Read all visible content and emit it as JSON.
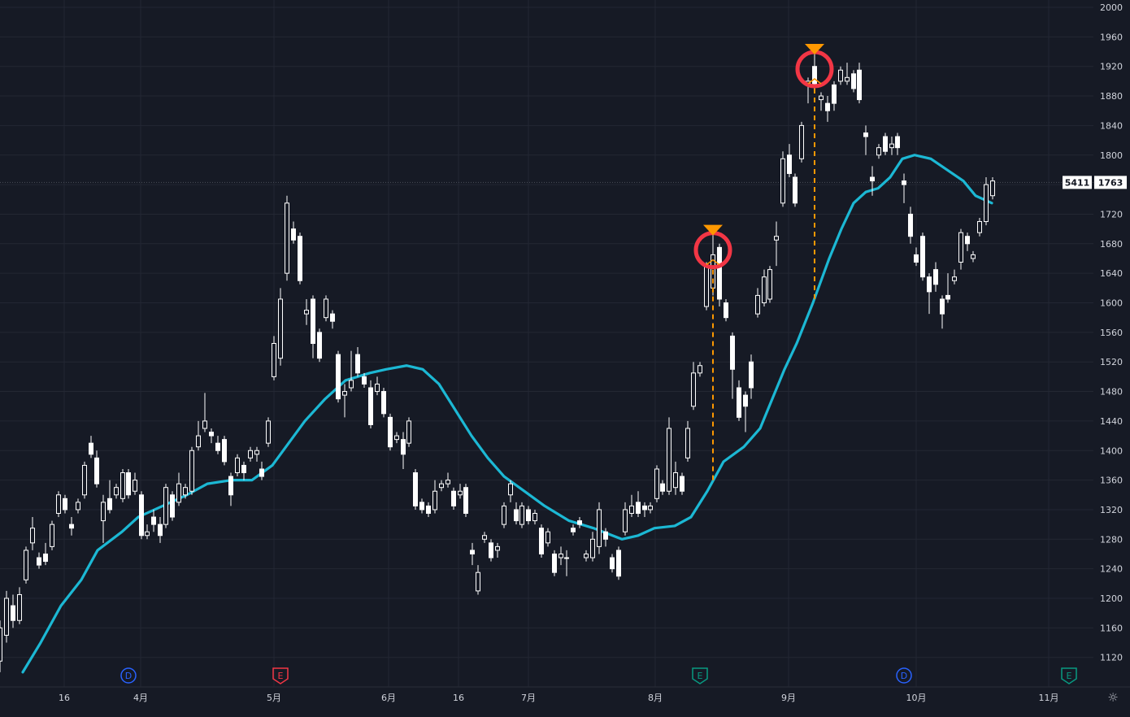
{
  "chart_data": {
    "type": "candlestick",
    "y_axis": {
      "ticks": [
        2000,
        1960,
        1920,
        1880,
        1840,
        1800,
        1760,
        1720,
        1680,
        1640,
        1600,
        1560,
        1520,
        1480,
        1440,
        1400,
        1360,
        1320,
        1280,
        1240,
        1200,
        1160,
        1120
      ],
      "range": [
        1100,
        2000
      ],
      "position": "right"
    },
    "x_axis": {
      "labels": [
        "16",
        "4月",
        "5月",
        "6月",
        "16",
        "7月",
        "8月",
        "9月",
        "10月",
        "11月"
      ]
    },
    "last_price": {
      "volume": "5411",
      "price": "1763"
    },
    "moving_average": {
      "color": "#1cb8d4",
      "points": [
        [
          28,
          1100
        ],
        [
          50,
          1140
        ],
        [
          75,
          1190
        ],
        [
          100,
          1225
        ],
        [
          120,
          1265
        ],
        [
          150,
          1290
        ],
        [
          170,
          1310
        ],
        [
          200,
          1325
        ],
        [
          230,
          1340
        ],
        [
          255,
          1355
        ],
        [
          285,
          1360
        ],
        [
          310,
          1360
        ],
        [
          335,
          1380
        ],
        [
          355,
          1410
        ],
        [
          375,
          1440
        ],
        [
          400,
          1470
        ],
        [
          425,
          1495
        ],
        [
          455,
          1505
        ],
        [
          475,
          1510
        ],
        [
          500,
          1515
        ],
        [
          520,
          1510
        ],
        [
          540,
          1490
        ],
        [
          560,
          1455
        ],
        [
          580,
          1420
        ],
        [
          600,
          1390
        ],
        [
          620,
          1365
        ],
        [
          645,
          1345
        ],
        [
          670,
          1325
        ],
        [
          700,
          1305
        ],
        [
          730,
          1295
        ],
        [
          765,
          1280
        ],
        [
          785,
          1285
        ],
        [
          805,
          1295
        ],
        [
          830,
          1298
        ],
        [
          850,
          1310
        ],
        [
          870,
          1345
        ],
        [
          890,
          1385
        ],
        [
          915,
          1405
        ],
        [
          935,
          1430
        ],
        [
          950,
          1470
        ],
        [
          965,
          1510
        ],
        [
          980,
          1545
        ],
        [
          1000,
          1600
        ],
        [
          1020,
          1660
        ],
        [
          1035,
          1700
        ],
        [
          1050,
          1735
        ],
        [
          1065,
          1750
        ],
        [
          1080,
          1755
        ],
        [
          1095,
          1770
        ],
        [
          1110,
          1795
        ],
        [
          1125,
          1800
        ],
        [
          1145,
          1795
        ],
        [
          1165,
          1780
        ],
        [
          1185,
          1765
        ],
        [
          1200,
          1745
        ],
        [
          1220,
          1735
        ]
      ]
    },
    "candles": [
      [
        0,
        1115,
        1160,
        1100,
        1170
      ],
      [
        8,
        1150,
        1200,
        1140,
        1210
      ],
      [
        16,
        1190,
        1170,
        1160,
        1205
      ],
      [
        24,
        1170,
        1205,
        1165,
        1215
      ],
      [
        32,
        1225,
        1265,
        1220,
        1270
      ],
      [
        40,
        1275,
        1295,
        1265,
        1310
      ],
      [
        48,
        1255,
        1245,
        1240,
        1262
      ],
      [
        56,
        1260,
        1250,
        1245,
        1275
      ],
      [
        64,
        1270,
        1300,
        1265,
        1305
      ],
      [
        72,
        1315,
        1340,
        1310,
        1345
      ],
      [
        80,
        1335,
        1320,
        1315,
        1340
      ],
      [
        88,
        1300,
        1295,
        1285,
        1310
      ],
      [
        96,
        1320,
        1330,
        1315,
        1335
      ],
      [
        104,
        1340,
        1380,
        1335,
        1385
      ],
      [
        112,
        1410,
        1395,
        1390,
        1420
      ],
      [
        119,
        1390,
        1355,
        1350,
        1400
      ],
      [
        127,
        1305,
        1330,
        1275,
        1340
      ],
      [
        135,
        1335,
        1320,
        1315,
        1360
      ],
      [
        143,
        1340,
        1350,
        1335,
        1355
      ],
      [
        151,
        1335,
        1370,
        1330,
        1375
      ],
      [
        158,
        1370,
        1340,
        1335,
        1375
      ],
      [
        166,
        1345,
        1360,
        1340,
        1370
      ],
      [
        174,
        1340,
        1285,
        1280,
        1345
      ],
      [
        181,
        1285,
        1290,
        1280,
        1300
      ],
      [
        189,
        1310,
        1300,
        1290,
        1320
      ],
      [
        197,
        1300,
        1285,
        1275,
        1310
      ],
      [
        204,
        1300,
        1350,
        1295,
        1355
      ],
      [
        212,
        1340,
        1310,
        1305,
        1345
      ],
      [
        220,
        1330,
        1355,
        1325,
        1370
      ],
      [
        228,
        1340,
        1350,
        1335,
        1355
      ],
      [
        236,
        1345,
        1400,
        1340,
        1405
      ],
      [
        244,
        1405,
        1420,
        1400,
        1440
      ],
      [
        252,
        1430,
        1440,
        1425,
        1478
      ],
      [
        260,
        1425,
        1420,
        1410,
        1430
      ],
      [
        268,
        1410,
        1400,
        1395,
        1420
      ],
      [
        276,
        1415,
        1385,
        1380,
        1420
      ],
      [
        284,
        1365,
        1340,
        1325,
        1370
      ],
      [
        292,
        1370,
        1390,
        1365,
        1395
      ],
      [
        300,
        1380,
        1370,
        1360,
        1385
      ],
      [
        308,
        1390,
        1400,
        1385,
        1405
      ],
      [
        316,
        1395,
        1400,
        1385,
        1405
      ],
      [
        322,
        1375,
        1365,
        1360,
        1385
      ],
      [
        330,
        1410,
        1440,
        1405,
        1445
      ],
      [
        337,
        1500,
        1545,
        1495,
        1555
      ],
      [
        345,
        1525,
        1605,
        1515,
        1620
      ],
      [
        353,
        1640,
        1735,
        1630,
        1745
      ],
      [
        361,
        1700,
        1685,
        1680,
        1710
      ],
      [
        369,
        1690,
        1630,
        1625,
        1695
      ],
      [
        377,
        1585,
        1590,
        1570,
        1605
      ],
      [
        385,
        1605,
        1545,
        1525,
        1610
      ],
      [
        393,
        1560,
        1525,
        1520,
        1565
      ],
      [
        401,
        1580,
        1605,
        1575,
        1610
      ],
      [
        409,
        1585,
        1575,
        1565,
        1590
      ],
      [
        416,
        1530,
        1470,
        1465,
        1535
      ],
      [
        424,
        1475,
        1480,
        1445,
        1490
      ],
      [
        432,
        1485,
        1495,
        1480,
        1535
      ],
      [
        440,
        1530,
        1505,
        1500,
        1540
      ],
      [
        448,
        1500,
        1490,
        1485,
        1505
      ],
      [
        456,
        1485,
        1435,
        1430,
        1495
      ],
      [
        464,
        1480,
        1490,
        1475,
        1500
      ],
      [
        472,
        1480,
        1450,
        1445,
        1485
      ],
      [
        480,
        1445,
        1405,
        1400,
        1450
      ],
      [
        488,
        1415,
        1420,
        1410,
        1425
      ],
      [
        496,
        1415,
        1395,
        1375,
        1425
      ],
      [
        503,
        1410,
        1440,
        1405,
        1445
      ],
      [
        511,
        1370,
        1325,
        1320,
        1375
      ],
      [
        519,
        1330,
        1320,
        1315,
        1335
      ],
      [
        527,
        1325,
        1315,
        1310,
        1330
      ],
      [
        535,
        1320,
        1345,
        1315,
        1360
      ],
      [
        543,
        1350,
        1355,
        1345,
        1360
      ],
      [
        551,
        1355,
        1360,
        1350,
        1370
      ],
      [
        558,
        1345,
        1325,
        1320,
        1350
      ],
      [
        566,
        1340,
        1345,
        1335,
        1355
      ],
      [
        573,
        1350,
        1315,
        1310,
        1355
      ],
      [
        581,
        1265,
        1260,
        1245,
        1275
      ],
      [
        588,
        1210,
        1235,
        1205,
        1245
      ],
      [
        596,
        1280,
        1285,
        1275,
        1290
      ],
      [
        604,
        1275,
        1255,
        1250,
        1280
      ],
      [
        612,
        1265,
        1270,
        1255,
        1275
      ],
      [
        620,
        1300,
        1325,
        1295,
        1330
      ],
      [
        628,
        1340,
        1355,
        1330,
        1360
      ],
      [
        635,
        1320,
        1305,
        1300,
        1330
      ],
      [
        642,
        1300,
        1325,
        1295,
        1330
      ],
      [
        650,
        1320,
        1305,
        1300,
        1325
      ],
      [
        658,
        1305,
        1315,
        1300,
        1320
      ],
      [
        666,
        1295,
        1260,
        1255,
        1300
      ],
      [
        674,
        1275,
        1290,
        1270,
        1295
      ],
      [
        682,
        1260,
        1235,
        1230,
        1265
      ],
      [
        690,
        1255,
        1260,
        1245,
        1270
      ],
      [
        697,
        1255,
        1255,
        1230,
        1265
      ],
      [
        705,
        1295,
        1290,
        1285,
        1300
      ],
      [
        713,
        1305,
        1300,
        1295,
        1310
      ],
      [
        721,
        1255,
        1260,
        1250,
        1265
      ],
      [
        729,
        1255,
        1280,
        1250,
        1290
      ],
      [
        737,
        1270,
        1320,
        1260,
        1330
      ],
      [
        745,
        1290,
        1280,
        1270,
        1295
      ],
      [
        753,
        1255,
        1240,
        1235,
        1260
      ],
      [
        761,
        1265,
        1230,
        1225,
        1270
      ],
      [
        769,
        1290,
        1320,
        1285,
        1330
      ],
      [
        777,
        1315,
        1325,
        1310,
        1340
      ],
      [
        785,
        1330,
        1315,
        1310,
        1345
      ],
      [
        793,
        1325,
        1320,
        1310,
        1330
      ],
      [
        800,
        1320,
        1325,
        1315,
        1330
      ],
      [
        808,
        1335,
        1375,
        1330,
        1380
      ],
      [
        815,
        1355,
        1345,
        1340,
        1360
      ],
      [
        823,
        1345,
        1430,
        1340,
        1445
      ],
      [
        831,
        1350,
        1370,
        1340,
        1385
      ],
      [
        839,
        1365,
        1345,
        1340,
        1370
      ],
      [
        846,
        1390,
        1430,
        1385,
        1440
      ],
      [
        853,
        1460,
        1505,
        1455,
        1520
      ],
      [
        861,
        1505,
        1515,
        1500,
        1520
      ],
      [
        869,
        1595,
        1650,
        1590,
        1655
      ],
      [
        877,
        1620,
        1665,
        1610,
        1700
      ],
      [
        885,
        1675,
        1605,
        1595,
        1680
      ],
      [
        893,
        1600,
        1580,
        1575,
        1605
      ],
      [
        901,
        1555,
        1510,
        1470,
        1560
      ],
      [
        909,
        1485,
        1445,
        1440,
        1495
      ],
      [
        917,
        1475,
        1460,
        1425,
        1480
      ],
      [
        924,
        1520,
        1485,
        1470,
        1530
      ],
      [
        932,
        1585,
        1610,
        1580,
        1620
      ],
      [
        940,
        1600,
        1635,
        1595,
        1645
      ],
      [
        947,
        1605,
        1645,
        1600,
        1650
      ],
      [
        955,
        1685,
        1690,
        1650,
        1710
      ],
      [
        963,
        1735,
        1795,
        1730,
        1805
      ],
      [
        971,
        1800,
        1775,
        1770,
        1815
      ],
      [
        978,
        1770,
        1735,
        1730,
        1775
      ],
      [
        986,
        1795,
        1840,
        1790,
        1845
      ],
      [
        994,
        1895,
        1900,
        1870,
        1905
      ],
      [
        1002,
        1920,
        1895,
        1890,
        1945
      ],
      [
        1010,
        1875,
        1880,
        1860,
        1885
      ],
      [
        1018,
        1870,
        1860,
        1845,
        1880
      ],
      [
        1026,
        1895,
        1870,
        1860,
        1900
      ],
      [
        1034,
        1900,
        1915,
        1895,
        1920
      ],
      [
        1042,
        1900,
        1905,
        1895,
        1925
      ],
      [
        1050,
        1910,
        1890,
        1885,
        1915
      ],
      [
        1057,
        1915,
        1875,
        1870,
        1925
      ],
      [
        1065,
        1830,
        1825,
        1800,
        1840
      ],
      [
        1073,
        1770,
        1765,
        1745,
        1785
      ],
      [
        1081,
        1800,
        1810,
        1795,
        1815
      ],
      [
        1089,
        1825,
        1805,
        1800,
        1830
      ],
      [
        1097,
        1810,
        1815,
        1800,
        1825
      ],
      [
        1104,
        1825,
        1810,
        1800,
        1830
      ],
      [
        1112,
        1765,
        1760,
        1735,
        1775
      ],
      [
        1120,
        1720,
        1690,
        1680,
        1730
      ],
      [
        1127,
        1665,
        1655,
        1650,
        1675
      ],
      [
        1135,
        1690,
        1635,
        1630,
        1695
      ],
      [
        1143,
        1635,
        1615,
        1585,
        1640
      ],
      [
        1151,
        1645,
        1625,
        1615,
        1655
      ],
      [
        1159,
        1605,
        1585,
        1565,
        1610
      ],
      [
        1166,
        1610,
        1605,
        1600,
        1640
      ],
      [
        1174,
        1630,
        1635,
        1625,
        1645
      ],
      [
        1182,
        1655,
        1695,
        1645,
        1700
      ],
      [
        1190,
        1690,
        1680,
        1670,
        1695
      ],
      [
        1197,
        1660,
        1665,
        1655,
        1670
      ],
      [
        1205,
        1695,
        1710,
        1690,
        1715
      ],
      [
        1213,
        1710,
        1760,
        1705,
        1770
      ],
      [
        1221,
        1745,
        1765,
        1740,
        1770
      ]
    ],
    "markers": [
      {
        "x": 877,
        "price": 1700,
        "target_price": 1360,
        "shape": "circle",
        "color": "#f23645"
      },
      {
        "x": 1002,
        "price": 1945,
        "target_price": 1600,
        "shape": "circle",
        "color": "#f23645"
      }
    ],
    "event_icons": [
      {
        "x": 158,
        "label": "D",
        "color": "#2962ff"
      },
      {
        "x": 345,
        "label": "E",
        "color": "#f23645"
      },
      {
        "x": 861,
        "label": "E",
        "color": "#089981"
      },
      {
        "x": 1112,
        "label": "D",
        "color": "#2962ff"
      },
      {
        "x": 1315,
        "label": "E",
        "color": "#089981"
      }
    ]
  },
  "colors": {
    "background": "#161a25",
    "grid": "#232733",
    "candle": "#ffffff",
    "orange": "#ff9800",
    "price_tag_bg": "#ffffff",
    "price_tag_text": "#131722"
  },
  "icons": {
    "settings": "gear-icon"
  }
}
